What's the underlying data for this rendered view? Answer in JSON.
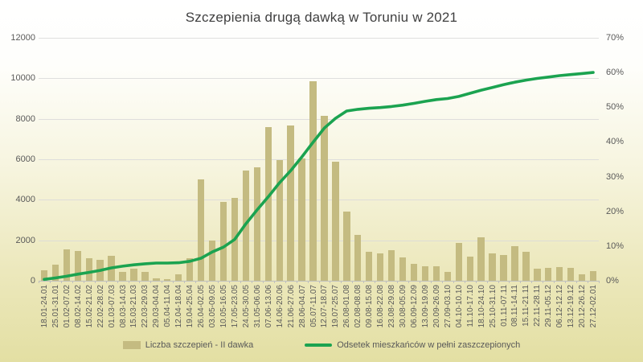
{
  "title": "Szczepienia drugą dawką w Toruniu w 2021",
  "colors": {
    "bar": "#c4bb81",
    "line": "#1ba350",
    "grid": "#d9d9d9",
    "axis": "#bfbfbf",
    "tick_text": "#595959",
    "title_text": "#3f3f3f",
    "background_top": "#ffffff",
    "background_bottom": "#e3dfa3"
  },
  "chart_data": {
    "type": "bar",
    "combo": "bar+line",
    "title": "Szczepienia drugą dawką w Toruniu w 2021",
    "grid": true,
    "legend_position": "bottom",
    "categories": [
      "18.01-24.01",
      "25.01-31.01",
      "01.02-07.02",
      "08.02-14.02",
      "15.02-21.02",
      "22.02-28.02",
      "01.03-07.03",
      "08.03-14.03",
      "15.03-21.03",
      "22.03-29.03",
      "29.03-04.04",
      "05.04-11.04",
      "12.04-18.04",
      "19.04-25.04",
      "26.04-02.05",
      "03.05-09.05",
      "10.05-16.05",
      "17.05-23.05",
      "24.05-30.05",
      "31.05-06.06",
      "07.06-13.06",
      "14.06-20.06",
      "21.06-27.06",
      "28.06-04.07",
      "05.07-11.07",
      "12.07-18.07",
      "19.07-25.07",
      "26.08-01.08",
      "02.08-08.08",
      "09.08-15.08",
      "16.08-22.08",
      "23.08-29.08",
      "30.08-05.09",
      "06.09-12.09",
      "13.09-19.09",
      "20.09-26.09",
      "27.09-03.10",
      "04.10-10.10",
      "11.10-17.10",
      "18.10-24.10",
      "25.10-31.10",
      "01.11-07.11",
      "08.11-14.11",
      "15.11-21.11",
      "22.11-28.11",
      "29.11-05.12",
      "06.12-12.12",
      "13.12-19.12",
      "20.12-26.12",
      "27.12-02.01"
    ],
    "series": [
      {
        "name": "Liczba szczepień - II dawka",
        "type": "bar",
        "axis": "left",
        "color": "#c4bb81",
        "values": [
          530,
          800,
          1530,
          1470,
          1120,
          1050,
          1230,
          450,
          590,
          430,
          100,
          60,
          330,
          1100,
          5010,
          1990,
          3900,
          4100,
          5450,
          5600,
          7600,
          5950,
          7650,
          6050,
          9850,
          8150,
          5890,
          3430,
          2250,
          1430,
          1340,
          1520,
          1160,
          830,
          700,
          720,
          450,
          1870,
          1200,
          2130,
          1360,
          1290,
          1690,
          1430,
          600,
          650,
          680,
          650,
          330,
          490
        ]
      },
      {
        "name": "Odsetek mieszkańców w pełni zaszczepionych",
        "type": "line",
        "axis": "right",
        "color": "#1ba350",
        "values": [
          0.4,
          0.8,
          1.3,
          1.9,
          2.4,
          3.0,
          3.7,
          4.2,
          4.6,
          4.9,
          5.1,
          5.1,
          5.2,
          5.6,
          6.5,
          8.3,
          9.7,
          11.9,
          16.4,
          20.4,
          24.2,
          28.2,
          31.7,
          35.7,
          39.9,
          44.0,
          46.8,
          48.9,
          49.4,
          49.7,
          49.9,
          50.2,
          50.6,
          51.1,
          51.7,
          52.2,
          52.5,
          53.1,
          54.0,
          54.9,
          55.7,
          56.5,
          57.2,
          57.8,
          58.3,
          58.7,
          59.1,
          59.4,
          59.7,
          60.0
        ]
      }
    ],
    "left_axis": {
      "min": 0,
      "max": 12000,
      "step": 2000,
      "ticks": [
        "0",
        "2000",
        "4000",
        "6000",
        "8000",
        "10000",
        "12000"
      ]
    },
    "right_axis": {
      "min": 0,
      "max": 70,
      "step": 10,
      "ticks": [
        "0%",
        "10%",
        "20%",
        "30%",
        "40%",
        "50%",
        "60%",
        "70%"
      ]
    }
  },
  "legend": {
    "bar_label": "Liczba szczepień - II dawka",
    "line_label": "Odsetek mieszkańców w pełni zaszczepionych"
  }
}
